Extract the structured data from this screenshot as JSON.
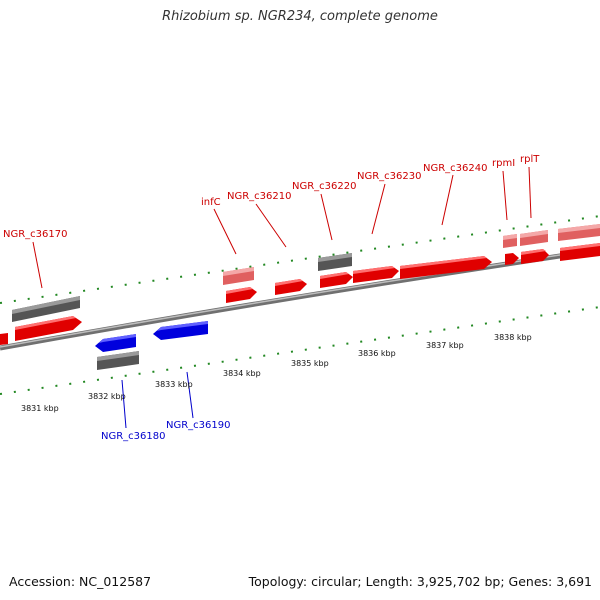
{
  "title": "Rhizobium sp. NGR234, complete genome",
  "footer": {
    "accession": "Accession: NC_012587",
    "topology": "Topology: circular; Length: 3,925,702 bp; Genes: 3,691"
  },
  "colors": {
    "forward_cds": "#ff0000",
    "forward_cds_light": "#f08080",
    "reverse_cds": "#0000ff",
    "gene_gray": "#666666",
    "ticks": "#228822",
    "axis": "#808080",
    "forward_label": "#cc0000",
    "reverse_label": "#0000cc"
  },
  "kbp_labels": [
    "3831 kbp",
    "3832 kbp",
    "3833 kbp",
    "3834 kbp",
    "3835 kbp",
    "3836 kbp",
    "3837 kbp",
    "3838 kbp"
  ],
  "gene_labels_forward": [
    "NGR_c36170",
    "infC",
    "NGR_c36210",
    "NGR_c36220",
    "NGR_c36230",
    "NGR_c36240",
    "rpmI",
    "rplT"
  ],
  "gene_labels_reverse": [
    "NGR_c36180",
    "NGR_c36190"
  ]
}
